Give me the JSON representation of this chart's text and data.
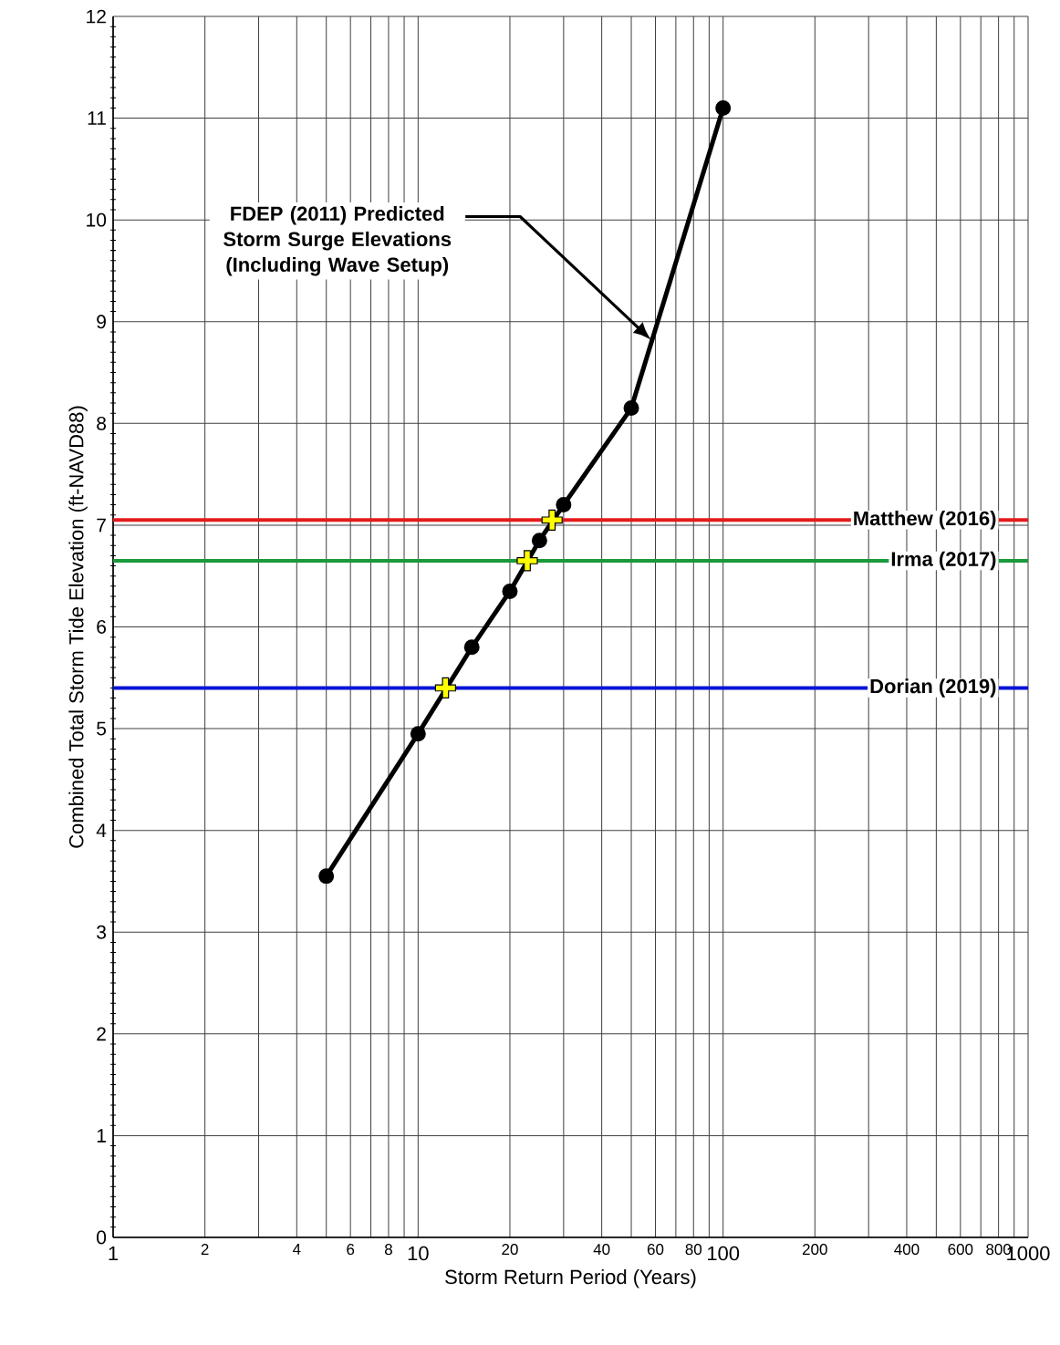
{
  "chart_data": {
    "type": "line",
    "xlabel": "Storm Return Period (Years)",
    "ylabel": "Combined Total Storm Tide Elevation (ft-NAVD88)",
    "log": "x",
    "xlim": [
      1,
      1000
    ],
    "ylim": [
      0,
      12
    ],
    "xticks": [
      1,
      2,
      {
        "value": 3,
        "label": null
      },
      4,
      {
        "value": 5,
        "label": null
      },
      6,
      {
        "value": 7,
        "label": null
      },
      8,
      {
        "value": 9,
        "label": null
      },
      10,
      20,
      {
        "value": 30,
        "label": null
      },
      40,
      {
        "value": 50,
        "label": null
      },
      60,
      {
        "value": 70,
        "label": null
      },
      80,
      {
        "value": 90,
        "label": null
      },
      100,
      200,
      {
        "value": 300,
        "label": null
      },
      400,
      {
        "value": 500,
        "label": null
      },
      600,
      {
        "value": 700,
        "label": null
      },
      800,
      {
        "value": 900,
        "label": null
      },
      1000
    ],
    "yticks": [
      0,
      1,
      2,
      3,
      4,
      5,
      6,
      7,
      8,
      9,
      10,
      11,
      12
    ],
    "grid": true,
    "series": [
      {
        "type": "line",
        "color": "#000000",
        "marker": "circle",
        "x": [
          5,
          10,
          15,
          20,
          25,
          30,
          50,
          100
        ],
        "values": [
          3.55,
          4.95,
          5.8,
          6.35,
          6.85,
          7.2,
          8.15,
          11.1
        ]
      },
      {
        "type": "scatter",
        "color": "#ffff00",
        "marker": "cross",
        "x": [
          12.3,
          22.8,
          27.5
        ],
        "values": [
          5.4,
          6.65,
          7.05
        ]
      }
    ],
    "ref_lines": [
      {
        "axis": "y",
        "value": 7.05,
        "label": "Matthew (2016)",
        "color": "#e31a1c"
      },
      {
        "axis": "y",
        "value": 6.65,
        "label": "Irma (2017)",
        "color": "#1a9a3a"
      },
      {
        "axis": "y",
        "value": 5.4,
        "label": "Dorian (2019)",
        "color": "#0a14d8"
      }
    ],
    "annotations": [
      "FDEP (2011) Predicted Storm Surge Elevations (Including Wave Setup)"
    ]
  }
}
